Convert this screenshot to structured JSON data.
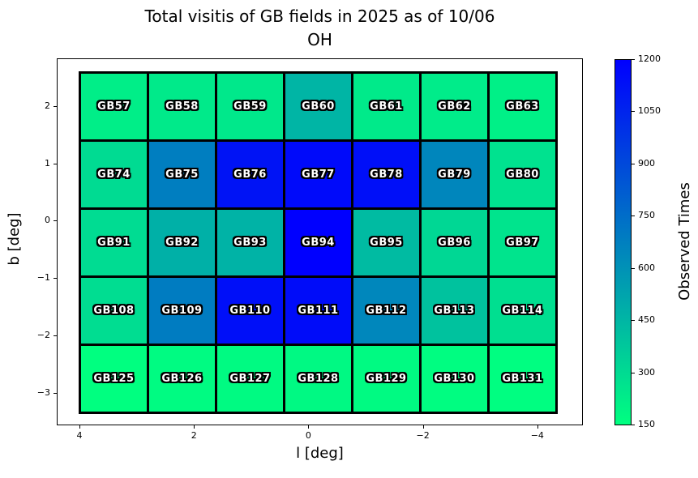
{
  "figure": {
    "title": "Total visitis of GB fields in 2025 as of 10/06",
    "subtitle": "OH"
  },
  "chart_data": {
    "type": "heatmap",
    "title": "Total visitis of GB fields in 2025 as of 10/06",
    "subtitle": "OH",
    "xlabel": "l [deg]",
    "ylabel": "b [deg]",
    "x_ticks": [
      4,
      2,
      0,
      -2,
      -4
    ],
    "y_ticks": [
      2,
      1,
      0,
      -1,
      -2,
      -3
    ],
    "grid": "off",
    "colorbar": {
      "label": "Observed Times",
      "ticks": [
        150,
        300,
        450,
        600,
        750,
        900,
        1050,
        1200
      ],
      "min_value": 150,
      "max_value": 1200,
      "min_color": "#00FF80",
      "max_color": "#0000FF",
      "colormap_name": "winter_r",
      "position": "right"
    },
    "rows": [
      {
        "fields": [
          {
            "label": "GB57",
            "value": 220
          },
          {
            "label": "GB58",
            "value": 235
          },
          {
            "label": "GB59",
            "value": 245
          },
          {
            "label": "GB60",
            "value": 455
          },
          {
            "label": "GB61",
            "value": 235
          },
          {
            "label": "GB62",
            "value": 230
          },
          {
            "label": "GB63",
            "value": 210
          }
        ]
      },
      {
        "fields": [
          {
            "label": "GB74",
            "value": 300
          },
          {
            "label": "GB75",
            "value": 680
          },
          {
            "label": "GB76",
            "value": 1120
          },
          {
            "label": "GB77",
            "value": 1160
          },
          {
            "label": "GB78",
            "value": 1140
          },
          {
            "label": "GB79",
            "value": 650
          },
          {
            "label": "GB80",
            "value": 270
          }
        ]
      },
      {
        "fields": [
          {
            "label": "GB91",
            "value": 295
          },
          {
            "label": "GB92",
            "value": 475
          },
          {
            "label": "GB93",
            "value": 465
          },
          {
            "label": "GB94",
            "value": 1200
          },
          {
            "label": "GB95",
            "value": 430
          },
          {
            "label": "GB96",
            "value": 315
          },
          {
            "label": "GB97",
            "value": 260
          }
        ]
      },
      {
        "fields": [
          {
            "label": "GB108",
            "value": 290
          },
          {
            "label": "GB109",
            "value": 690
          },
          {
            "label": "GB110",
            "value": 1140
          },
          {
            "label": "GB111",
            "value": 1150
          },
          {
            "label": "GB112",
            "value": 645
          },
          {
            "label": "GB113",
            "value": 400
          },
          {
            "label": "GB114",
            "value": 280
          }
        ]
      },
      {
        "fields": [
          {
            "label": "GB125",
            "value": 150
          },
          {
            "label": "GB126",
            "value": 165
          },
          {
            "label": "GB127",
            "value": 170
          },
          {
            "label": "GB128",
            "value": 175
          },
          {
            "label": "GB129",
            "value": 170
          },
          {
            "label": "GB130",
            "value": 160
          },
          {
            "label": "GB131",
            "value": 155
          }
        ]
      }
    ]
  }
}
